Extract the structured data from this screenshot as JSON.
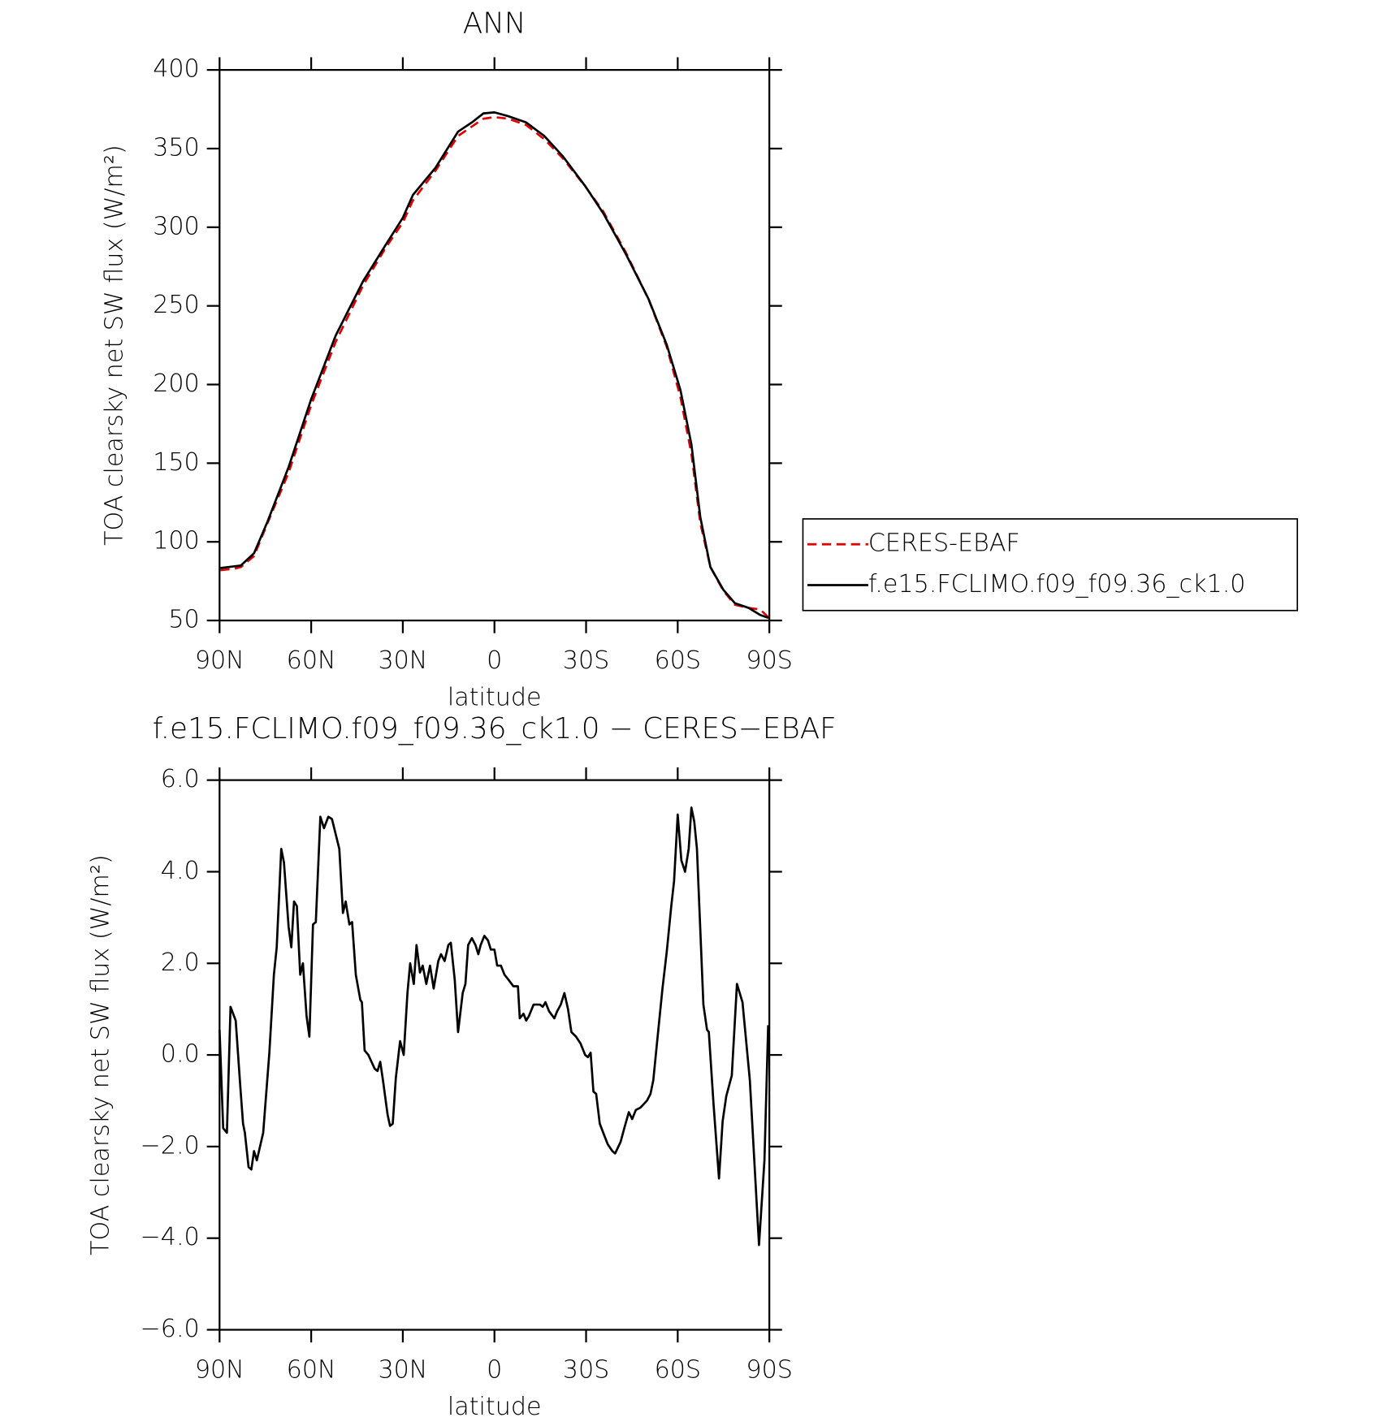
{
  "chart_data": [
    {
      "type": "line",
      "title": "ANN",
      "xlabel": "latitude",
      "ylabel": "TOA clearsky net SW flux (W/m²)",
      "xlim": [
        90,
        -90
      ],
      "xticks": [
        {
          "value": 90,
          "label": "90N"
        },
        {
          "value": 60,
          "label": "60N"
        },
        {
          "value": 30,
          "label": "30N"
        },
        0,
        {
          "value": -30,
          "label": "30S"
        },
        {
          "value": -60,
          "label": "60S"
        },
        {
          "value": -90,
          "label": "90S"
        }
      ],
      "ylim": [
        50,
        400
      ],
      "yticks": [
        50,
        100,
        150,
        200,
        250,
        300,
        350,
        400
      ],
      "x": [
        89.7,
        85,
        83,
        78.7,
        74.3,
        67.4,
        60,
        52,
        43,
        35.6,
        30,
        26.7,
        19.3,
        11.9,
        7.4,
        3.6,
        0,
        -4.5,
        -10.4,
        -16.3,
        -22.3,
        -29.7,
        -35.6,
        -43,
        -50.5,
        -56.4,
        -60.9,
        -64.5,
        -67.4,
        -70.7,
        -74.9,
        -78.7,
        -83.2,
        -87,
        -89.7
      ],
      "series": [
        {
          "name": "CERES-EBAF",
          "color": "#e00000",
          "linestyle": "dashed",
          "values": [
            82,
            83,
            84,
            91,
            112,
            144,
            187,
            227,
            263,
            287,
            303,
            317,
            336,
            358,
            364,
            369,
            370,
            369,
            365,
            356,
            344,
            326,
            310,
            284,
            254,
            224,
            192,
            156,
            112,
            84,
            69,
            60,
            58,
            57,
            52
          ]
        },
        {
          "name": "f.e15.FCLIMO.f09_f09.36_ck1.0",
          "color": "#000000",
          "linestyle": "solid",
          "values": [
            83.4,
            84.5,
            85,
            92.7,
            112.9,
            147.5,
            190.7,
            231,
            265.7,
            288.8,
            306,
            320.5,
            337.8,
            360.8,
            366.6,
            372.4,
            373,
            370.6,
            366.6,
            358,
            345.3,
            326.2,
            308.9,
            283,
            254.2,
            225.3,
            196.5,
            161.9,
            115.7,
            84,
            69.6,
            61,
            58,
            53.5,
            51.7
          ]
        }
      ]
    },
    {
      "type": "line",
      "title": "f.e15.FCLIMO.f09_f09.36_ck1.0 − CERES−EBAF",
      "xlabel": "latitude",
      "ylabel": "TOA clearsky net SW flux (W/m²)",
      "xlim": [
        90,
        -90
      ],
      "xticks": [
        {
          "value": 90,
          "label": "90N"
        },
        {
          "value": 60,
          "label": "60N"
        },
        {
          "value": 30,
          "label": "30N"
        },
        0,
        {
          "value": -30,
          "label": "30S"
        },
        {
          "value": -60,
          "label": "60S"
        },
        {
          "value": -90,
          "label": "90S"
        }
      ],
      "ylim": [
        -6,
        6
      ],
      "yticks": [
        {
          "value": -6,
          "label": "−6.0"
        },
        {
          "value": -4,
          "label": "−4.0"
        },
        {
          "value": -2,
          "label": "−2.0"
        },
        {
          "value": 0,
          "label": "0.0"
        },
        {
          "value": 2,
          "label": "2.0"
        },
        {
          "value": 4,
          "label": "4.0"
        },
        {
          "value": 6,
          "label": "6.0"
        }
      ],
      "x": [
        90,
        88.8,
        87.6,
        86.4,
        84.7,
        83.2,
        82.3,
        81.7,
        80.5,
        79.6,
        78.7,
        77.8,
        75.7,
        73.7,
        72.2,
        71.3,
        69.8,
        68.9,
        67.4,
        66.5,
        65.6,
        64.7,
        63.6,
        62.7,
        61.5,
        60.6,
        59.4,
        58.5,
        57,
        55.8,
        54.4,
        53.2,
        50.8,
        49.6,
        48.7,
        47.5,
        46.6,
        45.4,
        43.9,
        43.4,
        42.5,
        41.3,
        39.2,
        38.3,
        37.4,
        36.5,
        35,
        34.2,
        33.3,
        32.3,
        30.9,
        29.7,
        28.5,
        27.6,
        26.4,
        25.5,
        24.4,
        23.5,
        22.3,
        21.1,
        19.9,
        18.4,
        17.5,
        16.3,
        15.1,
        14.3,
        13,
        11.9,
        10.4,
        9.5,
        8.6,
        7.4,
        6.2,
        5.3,
        4.5,
        3.3,
        2.1,
        1.2,
        0,
        -0.9,
        -2.1,
        -3.3,
        -4.5,
        -6.2,
        -7.7,
        -8.3,
        -9.5,
        -10.4,
        -11.3,
        -12.8,
        -14.9,
        -15.8,
        -16.7,
        -17.9,
        -19.6,
        -20.5,
        -21.7,
        -22.9,
        -24.1,
        -25.2,
        -26.7,
        -28.2,
        -29.7,
        -30.6,
        -31.5,
        -32.4,
        -33.3,
        -34.5,
        -35.6,
        -37.1,
        -38.6,
        -39.5,
        -41.3,
        -42.5,
        -44,
        -45.1,
        -46.3,
        -47.8,
        -49.9,
        -51.1,
        -52,
        -53.2,
        -55,
        -56.4,
        -57.9,
        -58.8,
        -60,
        -61.2,
        -62.4,
        -63.6,
        -64.5,
        -65.4,
        -66.3,
        -68.4,
        -69.6,
        -70.2,
        -71.7,
        -73.5,
        -74.7,
        -75.9,
        -77.7,
        -79.4,
        -81.2,
        -83.6,
        -86.6,
        -88.4,
        -89.6
      ],
      "series": [
        {
          "color": "#000000",
          "linestyle": "solid",
          "values": [
            0.55,
            -1.6,
            -1.7,
            1.05,
            0.75,
            -0.7,
            -1.5,
            -1.7,
            -2.45,
            -2.5,
            -2.1,
            -2.3,
            -1.7,
            0.05,
            1.75,
            2.35,
            4.5,
            4.2,
            2.8,
            2.35,
            3.35,
            3.25,
            1.75,
            2.0,
            0.85,
            0.4,
            2.85,
            2.9,
            5.2,
            4.95,
            5.2,
            5.15,
            4.5,
            3.1,
            3.35,
            2.85,
            2.9,
            1.75,
            1.2,
            1.15,
            0.1,
            0,
            -0.3,
            -0.35,
            -0.15,
            -0.55,
            -1.3,
            -1.55,
            -1.5,
            -0.5,
            0.3,
            0,
            1.35,
            2.0,
            1.55,
            2.4,
            1.8,
            1.95,
            1.55,
            1.95,
            1.45,
            2.05,
            2.2,
            2.05,
            2.4,
            2.45,
            1.65,
            0.5,
            1.35,
            1.55,
            2.4,
            2.55,
            2.4,
            2.2,
            2.4,
            2.6,
            2.5,
            2.3,
            2.3,
            1.95,
            1.95,
            1.75,
            1.65,
            1.5,
            1.5,
            0.8,
            0.9,
            0.75,
            0.85,
            1.1,
            1.1,
            1.05,
            1.15,
            0.95,
            0.8,
            0.95,
            1.1,
            1.35,
            1.0,
            0.5,
            0.4,
            0.25,
            0,
            -0.05,
            0.05,
            -0.8,
            -0.85,
            -1.5,
            -1.7,
            -1.95,
            -2.1,
            -2.15,
            -1.9,
            -1.6,
            -1.25,
            -1.4,
            -1.2,
            -1.15,
            -1.0,
            -0.85,
            -0.55,
            0.25,
            1.45,
            2.25,
            3.25,
            3.8,
            5.25,
            4.25,
            4.0,
            4.5,
            5.4,
            5.1,
            4.5,
            1.1,
            0.55,
            0.5,
            -1.05,
            -2.7,
            -1.45,
            -0.9,
            -0.45,
            1.55,
            1.15,
            -0.55,
            -4.15,
            -2.3,
            0.65
          ]
        }
      ]
    }
  ]
}
